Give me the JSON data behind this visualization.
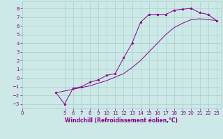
{
  "title": "",
  "xlabel": "Windchill (Refroidissement éolien,°C)",
  "ylabel": "",
  "background_color": "#cce9e7",
  "grid_color": "#aacfcd",
  "line_color": "#880088",
  "marker": "*",
  "x_ticks": [
    0,
    5,
    6,
    7,
    8,
    9,
    10,
    11,
    12,
    13,
    14,
    15,
    16,
    17,
    18,
    19,
    20,
    21,
    22,
    23
  ],
  "y_ticks": [
    -3,
    -2,
    -1,
    0,
    1,
    2,
    3,
    4,
    5,
    6,
    7,
    8
  ],
  "xlim": [
    0,
    23.5
  ],
  "ylim": [
    -3.5,
    8.8
  ],
  "curve1_x": [
    4.0,
    5.0,
    6.0,
    7.0,
    8.0,
    9.0,
    10.0,
    11.0,
    12.0,
    13.0,
    14.0,
    15.0,
    16.0,
    17.0,
    18.0,
    19.0,
    20.0,
    21.0,
    22.0,
    23.0
  ],
  "curve1_y": [
    -1.7,
    -3.0,
    -1.2,
    -1.0,
    -0.5,
    -0.2,
    0.3,
    0.5,
    2.3,
    4.0,
    6.4,
    7.3,
    7.3,
    7.3,
    7.8,
    7.9,
    8.0,
    7.5,
    7.3,
    6.6
  ],
  "curve2_x": [
    4.0,
    5.0,
    6.0,
    7.0,
    8.0,
    9.0,
    10.0,
    11.0,
    12.0,
    13.0,
    14.0,
    15.0,
    16.0,
    17.0,
    18.0,
    19.0,
    20.0,
    21.0,
    22.0,
    23.0
  ],
  "curve2_y": [
    -1.7,
    -1.5,
    -1.3,
    -1.1,
    -0.9,
    -0.6,
    -0.3,
    0.1,
    0.5,
    1.2,
    2.0,
    3.0,
    4.0,
    5.0,
    5.8,
    6.3,
    6.7,
    6.8,
    6.7,
    6.6
  ],
  "tick_fontsize": 5.0,
  "xlabel_fontsize": 5.5,
  "linewidth": 0.7,
  "markersize": 2.5
}
